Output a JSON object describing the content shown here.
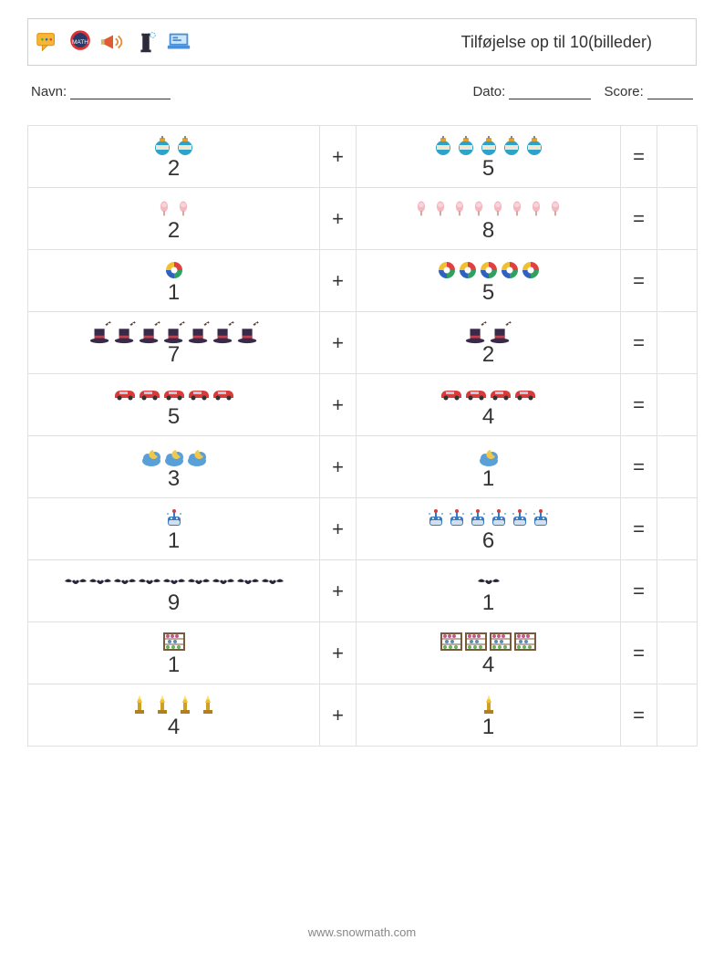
{
  "header": {
    "title": "Tilføjelse op til 10(billeder)"
  },
  "meta": {
    "name_label": "Navn:",
    "date_label": "Dato:",
    "score_label": "Score:",
    "name_line_w": 110,
    "date_line_w": 90,
    "score_line_w": 50
  },
  "symbols": {
    "plus": "+",
    "equals": "="
  },
  "rows": [
    {
      "icon": "bauble",
      "a": 2,
      "b": 5,
      "size": 24
    },
    {
      "icon": "candy",
      "a": 2,
      "b": 8,
      "size": 20
    },
    {
      "icon": "donut",
      "a": 1,
      "b": 5,
      "size": 22
    },
    {
      "icon": "magichat",
      "a": 7,
      "b": 2,
      "size": 26
    },
    {
      "icon": "car",
      "a": 5,
      "b": 4,
      "size": 26
    },
    {
      "icon": "cloud",
      "a": 3,
      "b": 1,
      "size": 24
    },
    {
      "icon": "robot",
      "a": 1,
      "b": 6,
      "size": 22
    },
    {
      "icon": "bat",
      "a": 9,
      "b": 1,
      "size": 26
    },
    {
      "icon": "abacus",
      "a": 1,
      "b": 4,
      "size": 26
    },
    {
      "icon": "trophy",
      "a": 4,
      "b": 1,
      "size": 24
    }
  ],
  "footer": "www.snowmath.com"
}
